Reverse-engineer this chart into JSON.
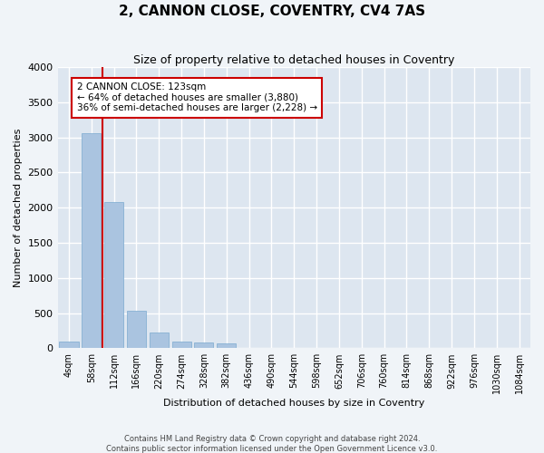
{
  "title": "2, CANNON CLOSE, COVENTRY, CV4 7AS",
  "subtitle": "Size of property relative to detached houses in Coventry",
  "xlabel": "Distribution of detached houses by size in Coventry",
  "ylabel": "Number of detached properties",
  "footer_line1": "Contains HM Land Registry data © Crown copyright and database right 2024.",
  "footer_line2": "Contains public sector information licensed under the Open Government Licence v3.0.",
  "bar_color": "#aac4e0",
  "bar_edge_color": "#7aaad0",
  "background_color": "#dde6f0",
  "grid_color": "#ffffff",
  "vline_color": "#cc0000",
  "bins": [
    "4sqm",
    "58sqm",
    "112sqm",
    "166sqm",
    "220sqm",
    "274sqm",
    "328sqm",
    "382sqm",
    "436sqm",
    "490sqm",
    "544sqm",
    "598sqm",
    "652sqm",
    "706sqm",
    "760sqm",
    "814sqm",
    "868sqm",
    "922sqm",
    "976sqm",
    "1030sqm",
    "1084sqm"
  ],
  "bar_heights": [
    100,
    3060,
    2080,
    530,
    220,
    100,
    80,
    70,
    0,
    0,
    0,
    0,
    0,
    0,
    0,
    0,
    0,
    0,
    0,
    0
  ],
  "ylim": [
    0,
    4000
  ],
  "yticks": [
    0,
    500,
    1000,
    1500,
    2000,
    2500,
    3000,
    3500,
    4000
  ],
  "vline_pos": 1.5,
  "annotation_text": "2 CANNON CLOSE: 123sqm\n← 64% of detached houses are smaller (3,880)\n36% of semi-detached houses are larger (2,228) →"
}
